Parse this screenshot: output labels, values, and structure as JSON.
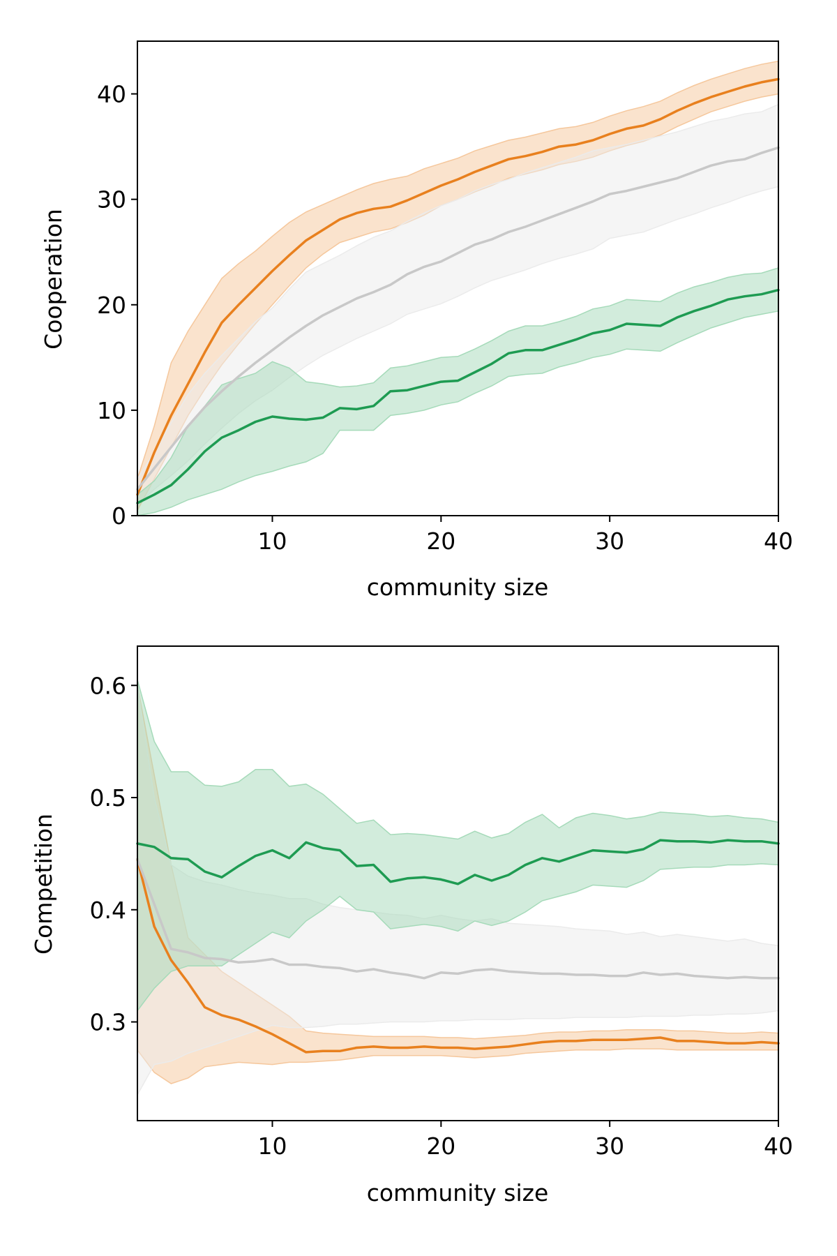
{
  "chart_data": [
    {
      "type": "line",
      "xlabel": "community size",
      "ylabel": "Cooperation",
      "xlim": [
        2,
        40
      ],
      "ylim": [
        0,
        45
      ],
      "xticks": [
        10,
        20,
        30,
        40
      ],
      "yticks": [
        0,
        10,
        20,
        30,
        40
      ],
      "grid": false,
      "x": [
        2,
        3,
        4,
        5,
        6,
        7,
        8,
        9,
        10,
        11,
        12,
        13,
        14,
        15,
        16,
        17,
        18,
        19,
        20,
        21,
        22,
        23,
        24,
        25,
        26,
        27,
        28,
        29,
        30,
        31,
        32,
        33,
        34,
        35,
        36,
        37,
        38,
        39,
        40
      ],
      "series": [
        {
          "color": "#e8801e",
          "band_color": "#f5c79c",
          "values": [
            2.0,
            6.0,
            9.5,
            12.5,
            15.5,
            18.3,
            20.0,
            21.6,
            23.2,
            24.7,
            26.1,
            27.1,
            28.1,
            28.7,
            29.1,
            29.3,
            29.9,
            30.6,
            31.3,
            31.9,
            32.6,
            33.2,
            33.8,
            34.1,
            34.5,
            35.0,
            35.2,
            35.6,
            36.2,
            36.7,
            37.0,
            37.6,
            38.4,
            39.1,
            39.7,
            40.2,
            40.7,
            41.1,
            41.4
          ],
          "lower": [
            0.5,
            3.5,
            6.5,
            9.5,
            12.0,
            14.3,
            16.3,
            18.2,
            20.0,
            21.8,
            23.5,
            24.8,
            25.9,
            26.4,
            26.9,
            27.2,
            27.8,
            28.5,
            29.4,
            30.0,
            30.7,
            31.3,
            32.0,
            32.4,
            32.8,
            33.3,
            33.6,
            34.0,
            34.6,
            35.1,
            35.5,
            36.1,
            36.9,
            37.6,
            38.3,
            38.8,
            39.3,
            39.7,
            40.0
          ],
          "upper": [
            3.5,
            8.5,
            14.5,
            17.5,
            20.0,
            22.5,
            23.9,
            25.1,
            26.5,
            27.8,
            28.8,
            29.5,
            30.2,
            30.9,
            31.5,
            31.9,
            32.2,
            32.9,
            33.4,
            33.9,
            34.6,
            35.1,
            35.6,
            35.9,
            36.3,
            36.7,
            36.9,
            37.3,
            37.9,
            38.4,
            38.8,
            39.3,
            40.1,
            40.8,
            41.4,
            41.9,
            42.4,
            42.8,
            43.1
          ]
        },
        {
          "color": "#c8c8c8",
          "band_color": "#ebebeb",
          "values": [
            2.5,
            4.5,
            6.5,
            8.5,
            10.3,
            11.8,
            13.2,
            14.5,
            15.7,
            16.9,
            18.0,
            19.0,
            19.8,
            20.6,
            21.2,
            21.9,
            22.9,
            23.6,
            24.1,
            24.9,
            25.7,
            26.2,
            26.9,
            27.4,
            28.0,
            28.6,
            29.2,
            29.8,
            30.5,
            30.8,
            31.2,
            31.6,
            32.0,
            32.6,
            33.2,
            33.6,
            33.8,
            34.4,
            34.9
          ],
          "lower": [
            1.0,
            2.5,
            3.8,
            5.2,
            6.8,
            8.3,
            9.7,
            10.9,
            11.9,
            13.1,
            14.2,
            15.2,
            16.0,
            16.8,
            17.5,
            18.2,
            19.1,
            19.6,
            20.1,
            20.8,
            21.6,
            22.3,
            22.8,
            23.3,
            23.9,
            24.4,
            24.8,
            25.3,
            26.3,
            26.6,
            26.9,
            27.5,
            28.1,
            28.6,
            29.2,
            29.7,
            30.3,
            30.8,
            31.2
          ],
          "upper": [
            3.5,
            6.0,
            8.8,
            11.5,
            13.5,
            15.2,
            16.8,
            18.4,
            19.7,
            21.5,
            23.1,
            23.9,
            24.7,
            25.6,
            26.4,
            27.0,
            27.9,
            28.7,
            29.4,
            30.0,
            30.8,
            31.4,
            31.9,
            32.5,
            33.0,
            33.5,
            34.0,
            34.6,
            34.9,
            35.2,
            35.6,
            36.0,
            36.4,
            36.9,
            37.4,
            37.7,
            38.1,
            38.3,
            39.0
          ]
        },
        {
          "color": "#1e9b52",
          "band_color": "#a5dab9",
          "values": [
            1.2,
            2.0,
            2.9,
            4.4,
            6.1,
            7.4,
            8.1,
            8.9,
            9.4,
            9.2,
            9.1,
            9.3,
            10.2,
            10.1,
            10.4,
            11.8,
            11.9,
            12.3,
            12.7,
            12.8,
            13.6,
            14.4,
            15.4,
            15.7,
            15.7,
            16.2,
            16.7,
            17.3,
            17.6,
            18.2,
            18.1,
            18.0,
            18.8,
            19.4,
            19.9,
            20.5,
            20.8,
            21.0,
            21.4
          ],
          "lower": [
            0.0,
            0.3,
            0.8,
            1.5,
            2.0,
            2.5,
            3.2,
            3.8,
            4.2,
            4.7,
            5.1,
            5.9,
            8.1,
            8.1,
            8.1,
            9.5,
            9.7,
            10.0,
            10.5,
            10.8,
            11.6,
            12.3,
            13.2,
            13.4,
            13.5,
            14.1,
            14.5,
            15.0,
            15.3,
            15.8,
            15.7,
            15.6,
            16.4,
            17.1,
            17.8,
            18.3,
            18.8,
            19.1,
            19.4
          ],
          "upper": [
            2.0,
            3.3,
            5.5,
            8.5,
            10.4,
            12.4,
            13.0,
            13.5,
            14.6,
            14.0,
            12.7,
            12.5,
            12.2,
            12.3,
            12.6,
            14.0,
            14.2,
            14.6,
            15.0,
            15.1,
            15.8,
            16.6,
            17.5,
            18.0,
            18.0,
            18.4,
            18.9,
            19.6,
            19.9,
            20.5,
            20.4,
            20.3,
            21.1,
            21.7,
            22.1,
            22.6,
            22.9,
            23.0,
            23.5
          ]
        }
      ]
    },
    {
      "type": "line",
      "xlabel": "community size",
      "ylabel": "Competition",
      "xlim": [
        2,
        40
      ],
      "ylim": [
        0.212,
        0.635
      ],
      "xticks": [
        10,
        20,
        30,
        40
      ],
      "yticks": [
        0.3,
        0.4,
        0.5,
        0.6
      ],
      "ytick_labels": [
        "0.3",
        "0.4",
        "0.5",
        "0.6"
      ],
      "grid": false,
      "x": [
        2,
        3,
        4,
        5,
        6,
        7,
        8,
        9,
        10,
        11,
        12,
        13,
        14,
        15,
        16,
        17,
        18,
        19,
        20,
        21,
        22,
        23,
        24,
        25,
        26,
        27,
        28,
        29,
        30,
        31,
        32,
        33,
        34,
        35,
        36,
        37,
        38,
        39,
        40
      ],
      "series": [
        {
          "color": "#e8801e",
          "band_color": "#f5c79c",
          "values": [
            0.445,
            0.385,
            0.355,
            0.335,
            0.313,
            0.306,
            0.302,
            0.296,
            0.289,
            0.281,
            0.273,
            0.274,
            0.274,
            0.277,
            0.278,
            0.277,
            0.277,
            0.278,
            0.277,
            0.277,
            0.276,
            0.277,
            0.278,
            0.28,
            0.282,
            0.283,
            0.283,
            0.284,
            0.284,
            0.284,
            0.285,
            0.286,
            0.283,
            0.283,
            0.282,
            0.281,
            0.281,
            0.282,
            0.281
          ],
          "lower": [
            0.275,
            0.255,
            0.245,
            0.25,
            0.26,
            0.262,
            0.264,
            0.263,
            0.262,
            0.264,
            0.264,
            0.265,
            0.266,
            0.268,
            0.27,
            0.27,
            0.27,
            0.27,
            0.27,
            0.269,
            0.268,
            0.269,
            0.27,
            0.272,
            0.273,
            0.274,
            0.275,
            0.275,
            0.275,
            0.276,
            0.276,
            0.276,
            0.275,
            0.275,
            0.275,
            0.275,
            0.275,
            0.275,
            0.275
          ],
          "upper": [
            0.6,
            0.52,
            0.44,
            0.375,
            0.36,
            0.345,
            0.335,
            0.325,
            0.315,
            0.305,
            0.292,
            0.29,
            0.289,
            0.288,
            0.287,
            0.287,
            0.287,
            0.287,
            0.286,
            0.286,
            0.285,
            0.286,
            0.287,
            0.288,
            0.29,
            0.291,
            0.291,
            0.292,
            0.292,
            0.293,
            0.293,
            0.293,
            0.292,
            0.292,
            0.291,
            0.29,
            0.29,
            0.291,
            0.29
          ]
        },
        {
          "color": "#c8c8c8",
          "band_color": "#ebebeb",
          "values": [
            0.445,
            0.405,
            0.365,
            0.362,
            0.357,
            0.356,
            0.353,
            0.354,
            0.356,
            0.351,
            0.351,
            0.349,
            0.348,
            0.345,
            0.347,
            0.344,
            0.342,
            0.339,
            0.344,
            0.343,
            0.346,
            0.347,
            0.345,
            0.344,
            0.343,
            0.343,
            0.342,
            0.342,
            0.341,
            0.341,
            0.344,
            0.342,
            0.343,
            0.341,
            0.34,
            0.339,
            0.34,
            0.339,
            0.339
          ],
          "lower": [
            0.235,
            0.262,
            0.265,
            0.272,
            0.277,
            0.282,
            0.287,
            0.292,
            0.297,
            0.295,
            0.295,
            0.296,
            0.298,
            0.298,
            0.299,
            0.3,
            0.3,
            0.3,
            0.301,
            0.301,
            0.302,
            0.302,
            0.302,
            0.303,
            0.303,
            0.303,
            0.304,
            0.304,
            0.304,
            0.304,
            0.305,
            0.305,
            0.305,
            0.306,
            0.306,
            0.307,
            0.307,
            0.308,
            0.31
          ],
          "upper": [
            0.6,
            0.5,
            0.44,
            0.43,
            0.425,
            0.422,
            0.418,
            0.415,
            0.413,
            0.41,
            0.41,
            0.405,
            0.402,
            0.4,
            0.398,
            0.396,
            0.395,
            0.392,
            0.395,
            0.392,
            0.39,
            0.392,
            0.388,
            0.387,
            0.386,
            0.385,
            0.383,
            0.382,
            0.381,
            0.378,
            0.38,
            0.376,
            0.378,
            0.376,
            0.374,
            0.372,
            0.374,
            0.37,
            0.368
          ]
        },
        {
          "color": "#1e9b52",
          "band_color": "#a5dab9",
          "values": [
            0.459,
            0.456,
            0.446,
            0.445,
            0.434,
            0.429,
            0.439,
            0.448,
            0.453,
            0.446,
            0.46,
            0.455,
            0.453,
            0.439,
            0.44,
            0.425,
            0.428,
            0.429,
            0.427,
            0.423,
            0.431,
            0.426,
            0.431,
            0.44,
            0.446,
            0.443,
            0.448,
            0.453,
            0.452,
            0.451,
            0.454,
            0.462,
            0.461,
            0.461,
            0.46,
            0.462,
            0.461,
            0.461,
            0.459
          ],
          "lower": [
            0.31,
            0.33,
            0.345,
            0.35,
            0.35,
            0.35,
            0.36,
            0.37,
            0.38,
            0.375,
            0.39,
            0.4,
            0.412,
            0.4,
            0.398,
            0.383,
            0.385,
            0.387,
            0.385,
            0.381,
            0.39,
            0.386,
            0.39,
            0.398,
            0.408,
            0.412,
            0.416,
            0.422,
            0.421,
            0.42,
            0.426,
            0.436,
            0.437,
            0.438,
            0.438,
            0.44,
            0.44,
            0.441,
            0.44
          ],
          "upper": [
            0.605,
            0.55,
            0.523,
            0.523,
            0.511,
            0.51,
            0.514,
            0.525,
            0.525,
            0.51,
            0.512,
            0.503,
            0.49,
            0.477,
            0.48,
            0.467,
            0.468,
            0.467,
            0.465,
            0.463,
            0.47,
            0.464,
            0.468,
            0.478,
            0.485,
            0.473,
            0.482,
            0.486,
            0.484,
            0.481,
            0.483,
            0.487,
            0.486,
            0.485,
            0.483,
            0.484,
            0.482,
            0.481,
            0.478
          ]
        }
      ]
    }
  ]
}
